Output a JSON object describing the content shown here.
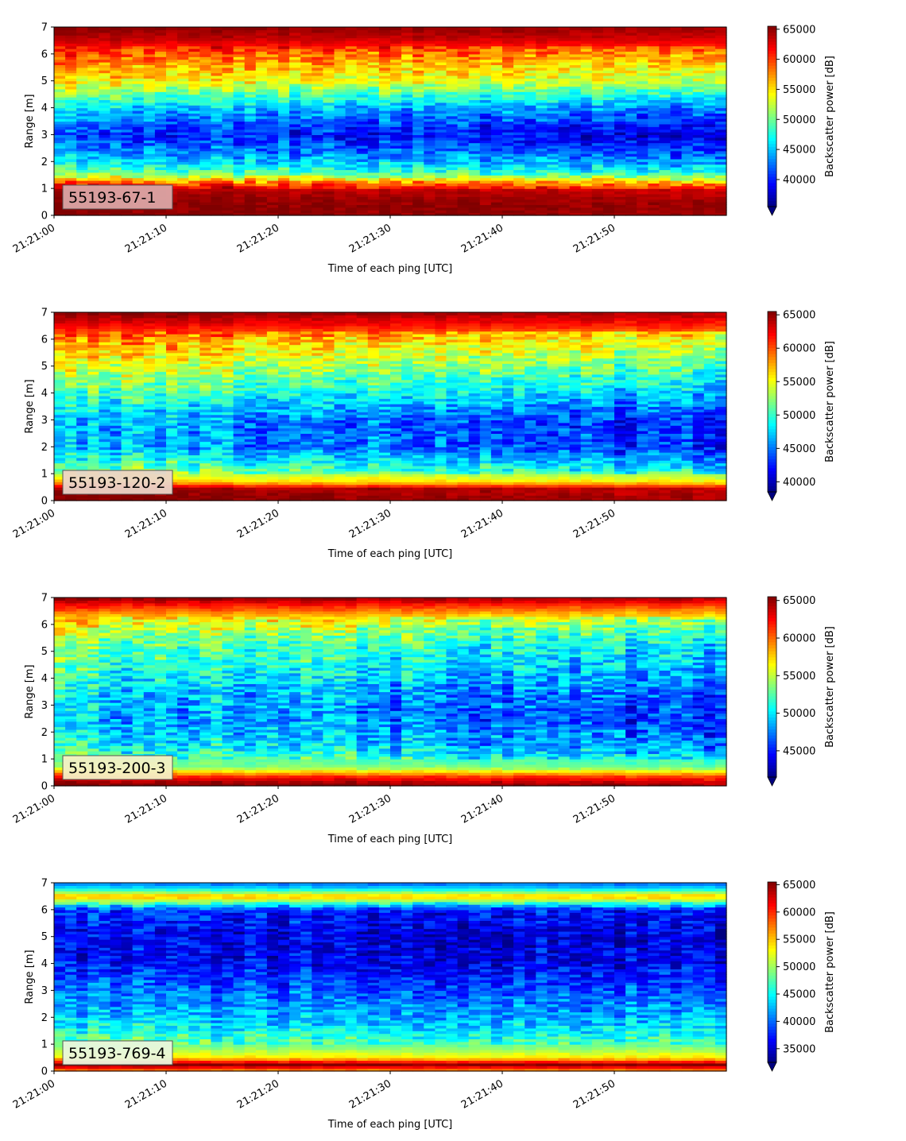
{
  "chart_data": [
    {
      "type": "heatmap",
      "label": "55193-67-1",
      "label_bg": "#dba5a5",
      "xlabel": "Time of each ping [UTC]",
      "ylabel": "Range [m]",
      "colorbar_label": "Backscatter power [dB]",
      "xlim": [
        "21:21:00",
        "21:21:59"
      ],
      "ylim": [
        0,
        7
      ],
      "x_ticks": [
        "21:21:00",
        "21:21:10",
        "21:21:20",
        "21:21:30",
        "21:21:40",
        "21:21:50"
      ],
      "y_ticks": [
        0,
        1,
        2,
        3,
        4,
        5,
        6,
        7
      ],
      "clim": [
        35500,
        65500
      ],
      "colorbar_ticks": [
        40000,
        45000,
        50000,
        55000,
        60000,
        65000
      ],
      "colormap": "jet",
      "profile": [
        {
          "range": 0.15,
          "value": 65500
        },
        {
          "range": 0.5,
          "value": 65500
        },
        {
          "range": 1.0,
          "value": 64000
        },
        {
          "range": 1.2,
          "value": 60000
        },
        {
          "range": 1.6,
          "value": 50000
        },
        {
          "range": 2.2,
          "value": 45000
        },
        {
          "range": 3.0,
          "value": 41000
        },
        {
          "range": 4.0,
          "value": 46000
        },
        {
          "range": 5.0,
          "value": 55000
        },
        {
          "range": 6.0,
          "value": 60000
        },
        {
          "range": 6.6,
          "value": 64000
        },
        {
          "range": 7.0,
          "value": 65500
        }
      ],
      "trend": [
        {
          "time": "21:21:00",
          "shift": 0
        },
        {
          "time": "21:21:59",
          "shift": -3500
        }
      ],
      "variability": 3500
    },
    {
      "type": "heatmap",
      "label": "55193-120-2",
      "label_bg": "#ebd5c8",
      "xlabel": "Time of each ping [UTC]",
      "ylabel": "Range [m]",
      "colorbar_label": "Backscatter power [dB]",
      "xlim": [
        "21:21:00",
        "21:21:59"
      ],
      "ylim": [
        0,
        7
      ],
      "x_ticks": [
        "21:21:00",
        "21:21:10",
        "21:21:20",
        "21:21:30",
        "21:21:40",
        "21:21:50"
      ],
      "y_ticks": [
        0,
        1,
        2,
        3,
        4,
        5,
        6,
        7
      ],
      "clim": [
        38500,
        65500
      ],
      "colorbar_ticks": [
        40000,
        45000,
        50000,
        55000,
        60000,
        65000
      ],
      "colormap": "jet",
      "profile": [
        {
          "range": 0.1,
          "value": 65500
        },
        {
          "range": 0.45,
          "value": 65000
        },
        {
          "range": 0.7,
          "value": 57000
        },
        {
          "range": 1.2,
          "value": 52000
        },
        {
          "range": 2.0,
          "value": 47000
        },
        {
          "range": 3.0,
          "value": 47000
        },
        {
          "range": 4.0,
          "value": 51000
        },
        {
          "range": 5.0,
          "value": 55000
        },
        {
          "range": 6.0,
          "value": 59000
        },
        {
          "range": 6.6,
          "value": 63000
        },
        {
          "range": 7.0,
          "value": 65500
        }
      ],
      "trend": [
        {
          "time": "21:21:00",
          "shift": 0
        },
        {
          "time": "21:21:59",
          "shift": -4500
        }
      ],
      "variability": 3500
    },
    {
      "type": "heatmap",
      "label": "55193-200-3",
      "label_bg": "#f4f0c4",
      "xlabel": "Time of each ping [UTC]",
      "ylabel": "Range [m]",
      "colorbar_label": "Backscatter power [dB]",
      "xlim": [
        "21:21:00",
        "21:21:59"
      ],
      "ylim": [
        0,
        7
      ],
      "x_ticks": [
        "21:21:00",
        "21:21:10",
        "21:21:20",
        "21:21:30",
        "21:21:40",
        "21:21:50"
      ],
      "y_ticks": [
        0,
        1,
        2,
        3,
        4,
        5,
        6,
        7
      ],
      "clim": [
        41500,
        65500
      ],
      "colorbar_ticks": [
        45000,
        50000,
        55000,
        60000,
        65000
      ],
      "colormap": "jet",
      "profile": [
        {
          "range": 0.1,
          "value": 65500
        },
        {
          "range": 0.35,
          "value": 62000
        },
        {
          "range": 0.7,
          "value": 54000
        },
        {
          "range": 1.5,
          "value": 51000
        },
        {
          "range": 2.5,
          "value": 49000
        },
        {
          "range": 3.5,
          "value": 50000
        },
        {
          "range": 4.5,
          "value": 52000
        },
        {
          "range": 5.5,
          "value": 54000
        },
        {
          "range": 6.3,
          "value": 58000
        },
        {
          "range": 6.7,
          "value": 62000
        },
        {
          "range": 7.0,
          "value": 65500
        }
      ],
      "trend": [
        {
          "time": "21:21:00",
          "shift": 0
        },
        {
          "time": "21:21:59",
          "shift": -3500
        }
      ],
      "variability": 3500
    },
    {
      "type": "heatmap",
      "label": "55193-769-4",
      "label_bg": "#e9f7dd",
      "xlabel": "Time of each ping [UTC]",
      "ylabel": "Range [m]",
      "colorbar_label": "Backscatter power [dB]",
      "xlim": [
        "21:21:00",
        "21:21:59"
      ],
      "ylim": [
        0,
        7
      ],
      "x_ticks": [
        "21:21:00",
        "21:21:10",
        "21:21:20",
        "21:21:30",
        "21:21:40",
        "21:21:50"
      ],
      "y_ticks": [
        0,
        1,
        2,
        3,
        4,
        5,
        6,
        7
      ],
      "clim": [
        32500,
        65500
      ],
      "colorbar_ticks": [
        35000,
        40000,
        45000,
        50000,
        55000,
        60000,
        65000
      ],
      "colormap": "jet",
      "profile": [
        {
          "range": 0.05,
          "value": 58000
        },
        {
          "range": 0.25,
          "value": 65500
        },
        {
          "range": 0.5,
          "value": 54000
        },
        {
          "range": 1.0,
          "value": 48000
        },
        {
          "range": 2.0,
          "value": 43000
        },
        {
          "range": 3.0,
          "value": 40000
        },
        {
          "range": 4.0,
          "value": 37000
        },
        {
          "range": 5.0,
          "value": 36000
        },
        {
          "range": 6.0,
          "value": 38000
        },
        {
          "range": 6.5,
          "value": 56000
        },
        {
          "range": 6.8,
          "value": 44000
        },
        {
          "range": 7.0,
          "value": 40000
        }
      ],
      "trend": [
        {
          "time": "21:21:00",
          "shift": 0
        },
        {
          "time": "21:21:59",
          "shift": -1000
        }
      ],
      "variability": 4000
    }
  ]
}
